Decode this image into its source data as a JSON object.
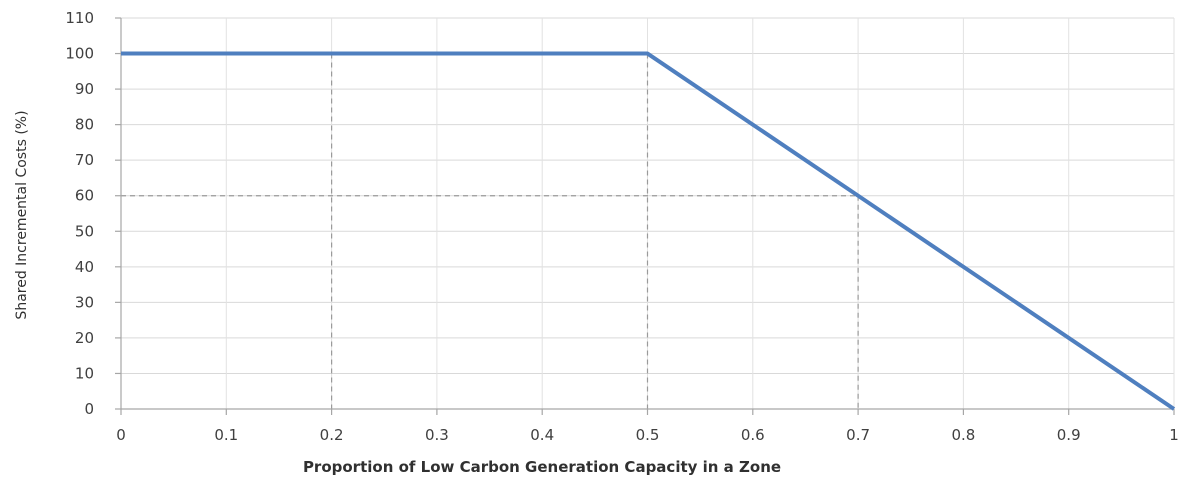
{
  "chart_data": {
    "type": "line",
    "title": "",
    "xlabel": "Proportion of Low Carbon Generation Capacity in a Zone",
    "ylabel": "Shared Incremental Costs (%)",
    "xlim": [
      0,
      1
    ],
    "ylim": [
      0,
      110
    ],
    "x_ticks": [
      0,
      0.1,
      0.2,
      0.3,
      0.4,
      0.5,
      0.6,
      0.7,
      0.8,
      0.9,
      1
    ],
    "x_tick_labels": [
      "0",
      "0.1",
      "0.2",
      "0.3",
      "0.4",
      "0.5",
      "0.6",
      "0.7",
      "0.8",
      "0.9",
      "1"
    ],
    "y_ticks": [
      0,
      10,
      20,
      30,
      40,
      50,
      60,
      70,
      80,
      90,
      100,
      110
    ],
    "y_tick_labels": [
      "0",
      "10",
      "20",
      "30",
      "40",
      "50",
      "60",
      "70",
      "80",
      "90",
      "100",
      "110"
    ],
    "grid": true,
    "legend": "none",
    "series": [
      {
        "x": [
          0,
          0.5,
          1
        ],
        "y": [
          100,
          100,
          0
        ],
        "color": "#4f7fbf"
      }
    ],
    "reference_lines": [
      {
        "x": 0.2,
        "y": 100
      },
      {
        "x": 0.5,
        "y": 100
      },
      {
        "x": 0.7,
        "y": 60
      }
    ]
  }
}
